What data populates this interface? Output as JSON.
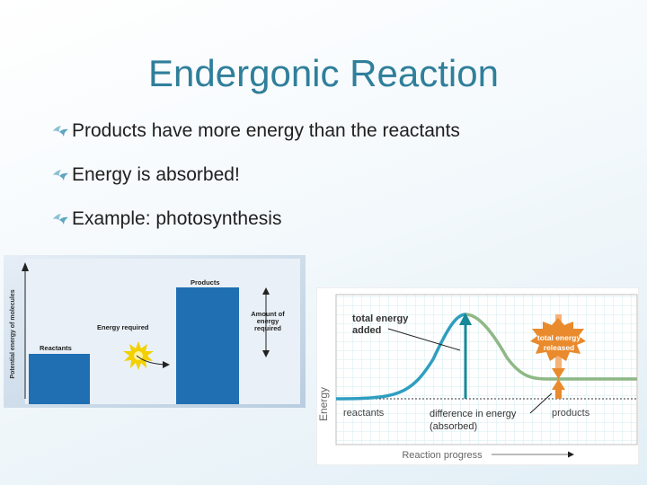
{
  "slide": {
    "title": "Endergonic Reaction",
    "bullets": [
      "Products have more energy than the reactants",
      "Energy is absorbed!",
      "Example: photosynthesis"
    ]
  },
  "diagram_left": {
    "y_axis_label": "Potential energy of molecules",
    "reactants_label": "Reactants",
    "products_label": "Products",
    "energy_required_label": "Energy required",
    "amount_label_line1": "Amount of",
    "amount_label_line2": "energy",
    "amount_label_line3": "required"
  },
  "diagram_right": {
    "y_axis_label": "Energy",
    "x_axis_label": "Reaction progress",
    "total_added_line1": "total energy",
    "total_added_line2": "added",
    "total_released_line1": "total energy",
    "total_released_line2": "released",
    "reactants_label": "reactants",
    "products_label": "products",
    "difference_line1": "difference in energy",
    "difference_line2": "(absorbed)"
  },
  "colors": {
    "title": "#2f7f9b",
    "bar_blue": "#1f6fb2",
    "curve_blue": "#2f9ec0",
    "curve_green": "#8fb886",
    "arrow_teal": "#17889a",
    "arrow_orange": "#e98a2c",
    "starburst": "#f3d000"
  }
}
